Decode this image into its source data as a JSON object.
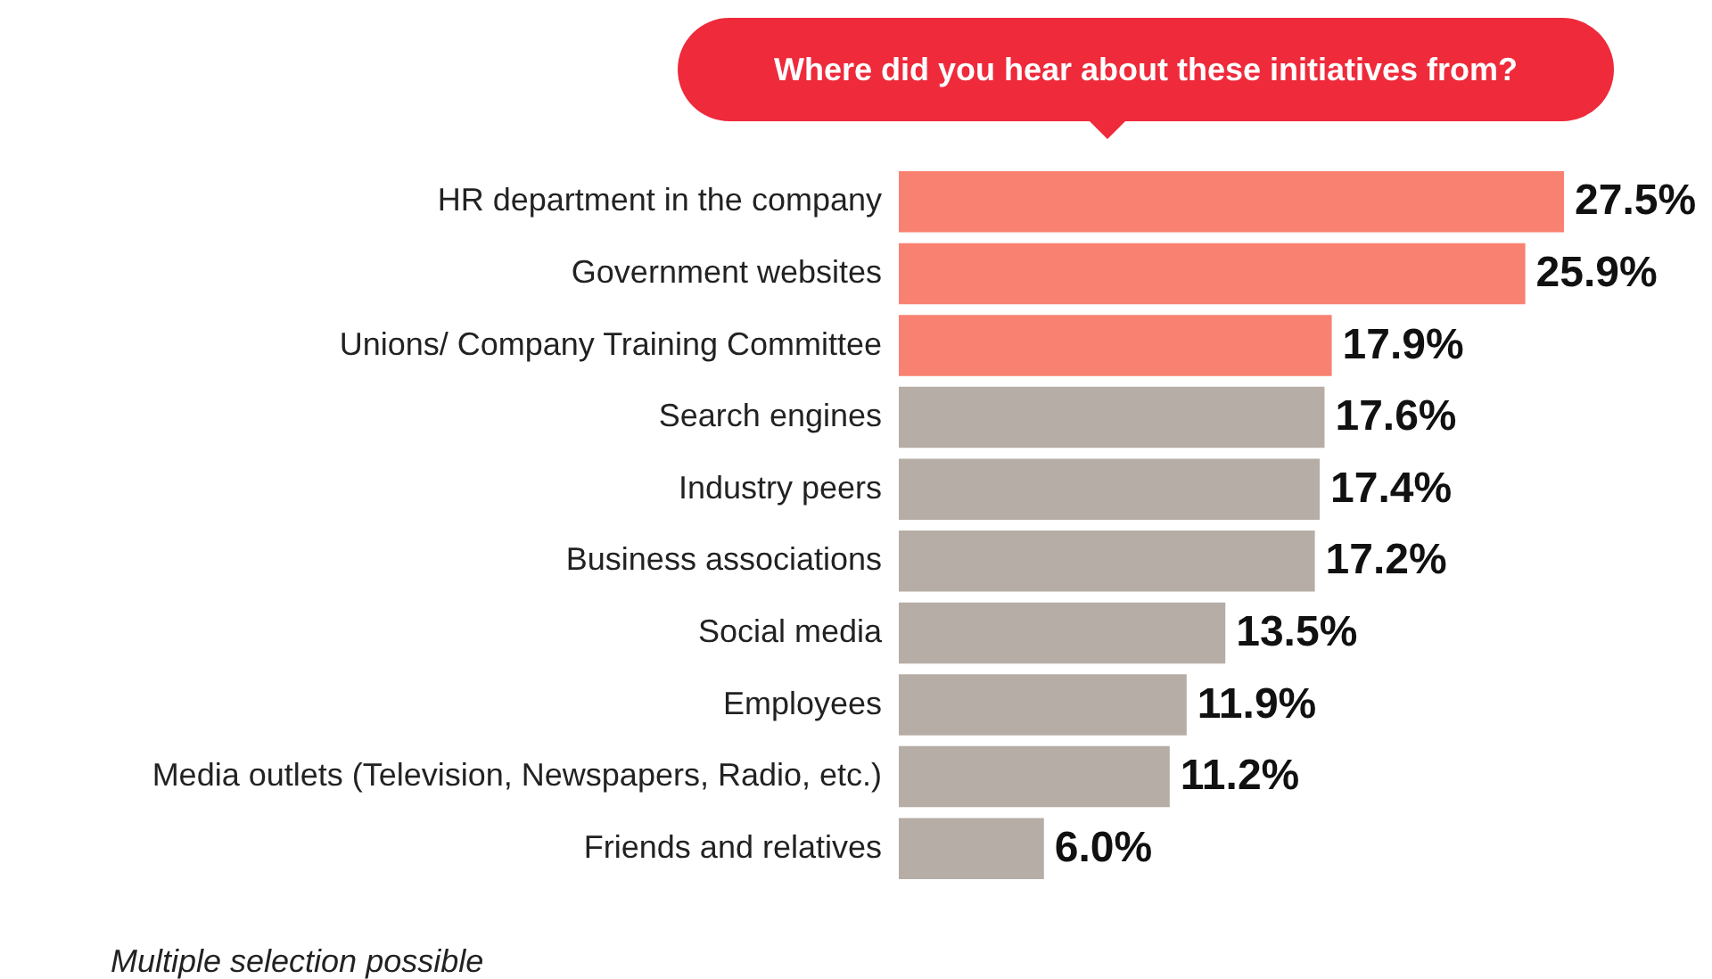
{
  "chart_data": {
    "type": "bar",
    "orientation": "horizontal",
    "title": "Where did you hear about these initiatives from?",
    "categories": [
      "HR department in the company",
      "Government websites",
      "Unions/ Company Training Committee",
      "Search engines",
      "Industry peers",
      "Business associations",
      "Social media",
      "Employees",
      "Media outlets (Television, Newspapers, Radio, etc.)",
      "Friends and relatives"
    ],
    "values": [
      27.5,
      25.9,
      17.9,
      17.6,
      17.4,
      17.2,
      13.5,
      11.9,
      11.2,
      6.0
    ],
    "value_labels": [
      "27.5%",
      "25.9%",
      "17.9%",
      "17.6%",
      "17.4%",
      "17.2%",
      "13.5%",
      "11.9%",
      "11.2%",
      "6.0%"
    ],
    "colors": [
      "#f98171",
      "#f98171",
      "#f98171",
      "#b5ada6",
      "#b5ada6",
      "#b5ada6",
      "#b5ada6",
      "#b5ada6",
      "#b5ada6",
      "#b5ada6"
    ],
    "annotations": [
      "Multiple selection possible"
    ]
  }
}
